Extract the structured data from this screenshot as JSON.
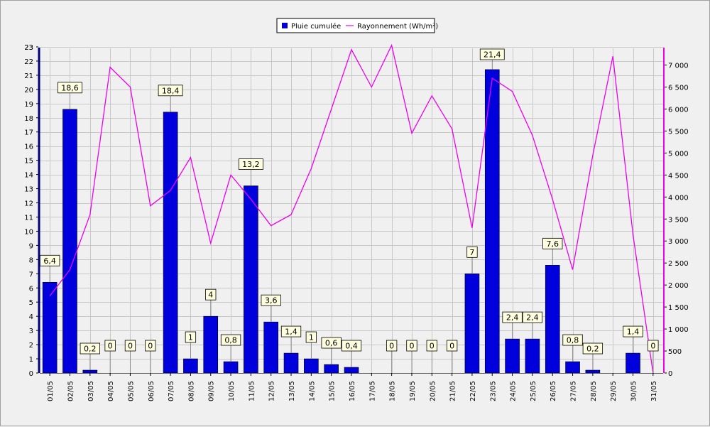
{
  "chart_data": {
    "type": "bar",
    "categories": [
      "01/05",
      "02/05",
      "03/05",
      "04/05",
      "05/05",
      "06/05",
      "07/05",
      "08/05",
      "09/05",
      "10/05",
      "11/05",
      "12/05",
      "13/05",
      "14/05",
      "15/05",
      "16/05",
      "17/05",
      "18/05",
      "19/05",
      "20/05",
      "21/05",
      "22/05",
      "23/05",
      "24/05",
      "25/05",
      "26/05",
      "27/05",
      "28/05",
      "29/05",
      "30/05",
      "31/05"
    ],
    "series": [
      {
        "name": "Pluie cumulée",
        "kind": "bar",
        "axis": "left",
        "color": "#0000dd",
        "values": [
          6.4,
          18.6,
          0.2,
          0,
          0,
          0,
          18.4,
          1,
          4,
          0.8,
          13.2,
          3.6,
          1.4,
          1,
          0.6,
          0.4,
          0,
          0,
          0,
          0,
          0,
          7,
          21.4,
          2.4,
          2.4,
          7.6,
          0.8,
          0.2,
          0,
          1.4,
          0
        ],
        "labels": [
          "6,4",
          "18,6",
          "0,2",
          "0",
          "0",
          "0",
          "18,4",
          "1",
          "4",
          "0,8",
          "13,2",
          "3,6",
          "1,4",
          "1",
          "0,6",
          "0,4",
          "",
          "0",
          "0",
          "0",
          "0",
          "7",
          "21,4",
          "2,4",
          "2,4",
          "7,6",
          "0,8",
          "0,2",
          "",
          "1,4",
          "0"
        ]
      },
      {
        "name": "Rayonnement (Wh/m²)",
        "kind": "line",
        "axis": "right",
        "color": "#ee00ee",
        "values": [
          1750,
          2350,
          3600,
          6950,
          6500,
          3800,
          4150,
          4900,
          2950,
          4500,
          3950,
          3350,
          3600,
          4650,
          6000,
          7350,
          6500,
          7450,
          5450,
          6300,
          5550,
          3300,
          6700,
          6400,
          5400,
          3950,
          2350,
          4950,
          7200,
          3150,
          0
        ]
      }
    ],
    "left_ticks": [
      "0",
      "1",
      "2",
      "3",
      "4",
      "5",
      "6",
      "7",
      "8",
      "9",
      "10",
      "11",
      "12",
      "13",
      "14",
      "15",
      "16",
      "17",
      "18",
      "19",
      "20",
      "21",
      "22",
      "23",
      "23"
    ],
    "right_ticks": [
      "0",
      "500",
      "1 000",
      "1 500",
      "2 000",
      "2 500",
      "3 000",
      "3 500",
      "4 000",
      "4 500",
      "5 000",
      "5 500",
      "6 000",
      "6 500",
      "7 000"
    ],
    "ylim_left": [
      0,
      23
    ],
    "ylim_right": [
      0,
      7300
    ],
    "grid": true,
    "legend_position": "top-center"
  }
}
